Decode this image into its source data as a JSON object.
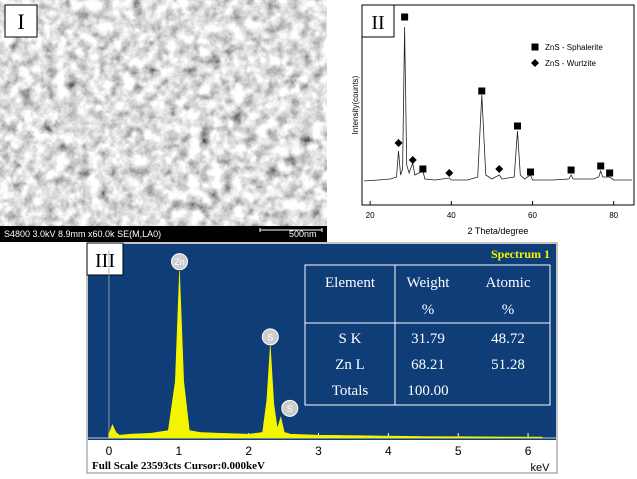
{
  "panels": {
    "sem": {
      "label": "I",
      "info": "S4800 3.0kV 8.9mm x60.0k SE(M,LA0)",
      "scale": "500nm"
    },
    "xrd": {
      "label": "II"
    },
    "eds": {
      "label": "III",
      "spectrum": "Spectrum 1",
      "footer": "Full Scale 23593cts  Cursor:0.000keV",
      "table": {
        "header": [
          [
            "Element"
          ],
          [
            "Weight",
            "%"
          ],
          [
            "Atomic",
            "%"
          ]
        ],
        "rows": [
          [
            "S  K",
            "31.79",
            "48.72"
          ],
          [
            "Zn  L",
            "68.21",
            "51.28"
          ],
          [
            "Totals",
            "100.00"
          ]
        ]
      }
    }
  },
  "chart_data": [
    {
      "type": "line",
      "xlabel": "2 Theta/degree",
      "ylabel": "Intensity(counts)",
      "xlim": [
        18,
        85
      ],
      "ylim": [
        0,
        100
      ],
      "xticks": [
        20,
        40,
        60,
        80
      ],
      "color": "#222222",
      "x": [
        18.5,
        22,
        25,
        26.5,
        27,
        27.5,
        28,
        28.5,
        29,
        29.6,
        30.5,
        31,
        33,
        33.5,
        36,
        39.5,
        40,
        44,
        46.5,
        47.5,
        48.5,
        50,
        51.8,
        52.5,
        55.5,
        56.3,
        57,
        58,
        59.5,
        60,
        65,
        69,
        69.5,
        70,
        75,
        76.3,
        76.8,
        77.3,
        79,
        80,
        84.5
      ],
      "values": [
        12,
        12.5,
        13,
        14,
        27,
        15,
        18,
        89,
        20,
        16,
        21,
        15,
        17,
        13,
        12.5,
        13.5,
        12.5,
        12.5,
        14,
        55,
        15,
        13,
        15,
        13,
        14,
        37,
        15,
        13,
        15,
        12.5,
        12.5,
        13,
        15,
        13,
        13,
        14,
        17,
        14,
        14,
        12.5,
        12.5
      ],
      "markers": [
        {
          "name": "ZnS - Sphalerite",
          "symbol": "square",
          "color": "#000000",
          "x": [
            28.5,
            33,
            47.5,
            56.3,
            59.5,
            69.5,
            76.8,
            79
          ],
          "values": [
            94,
            18,
            57,
            39.5,
            16.5,
            17.5,
            19.5,
            16
          ]
        },
        {
          "name": "ZnS - Wurtzite",
          "symbol": "diamond",
          "color": "#000000",
          "x": [
            27,
            30.5,
            39.5,
            51.8
          ],
          "values": [
            31,
            22.5,
            16,
            18
          ]
        }
      ]
    },
    {
      "type": "area",
      "xlabel": "keV",
      "xlim": [
        -0.3,
        6.4
      ],
      "ylim": [
        0,
        100
      ],
      "xticks": [
        0,
        1,
        2,
        3,
        4,
        5,
        6
      ],
      "color": "#f5f500",
      "x": [
        0,
        0.05,
        0.1,
        0.15,
        0.3,
        0.6,
        0.85,
        0.95,
        1.01,
        1.07,
        1.15,
        1.3,
        1.6,
        2.0,
        2.2,
        2.26,
        2.31,
        2.36,
        2.41,
        2.46,
        2.51,
        2.6,
        3.0,
        3.6,
        4.0,
        4.5,
        5,
        5.5,
        6,
        6.2
      ],
      "values": [
        2,
        7,
        3,
        1.5,
        2,
        2.5,
        4,
        30,
        89,
        30,
        4,
        3,
        2.5,
        2,
        3,
        20,
        49,
        18,
        5,
        11,
        3,
        2,
        1.5,
        1.2,
        1,
        0.8,
        0.7,
        0.6,
        0.5,
        0.5
      ],
      "peak_labels": [
        {
          "label": "Zn",
          "x": 1.01
        },
        {
          "label": "S",
          "x": 2.31
        },
        {
          "label": "S",
          "x": 2.46
        }
      ]
    }
  ]
}
